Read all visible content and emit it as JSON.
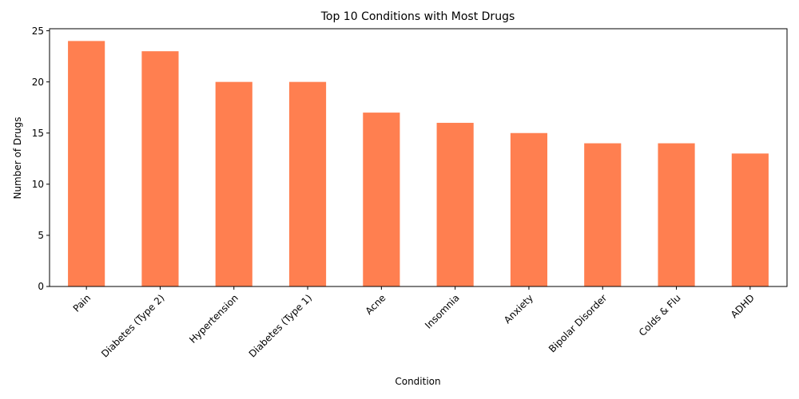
{
  "chart_data": {
    "type": "bar",
    "title": "Top 10 Conditions with Most Drugs",
    "xlabel": "Condition",
    "ylabel": "Number of Drugs",
    "categories": [
      "Pain",
      "Diabetes (Type 2)",
      "Hypertension",
      "Diabetes (Type 1)",
      "Acne",
      "Insomnia",
      "Anxiety",
      "Bipolar Disorder",
      "Colds & Flu",
      "ADHD"
    ],
    "values": [
      24,
      23,
      20,
      20,
      17,
      16,
      15,
      14,
      14,
      13
    ],
    "ylim": [
      0,
      25.2
    ],
    "yticks": [
      0,
      5,
      10,
      15,
      20,
      25
    ],
    "bar_color": "#ff7f50",
    "grid": false,
    "legend": "none"
  }
}
